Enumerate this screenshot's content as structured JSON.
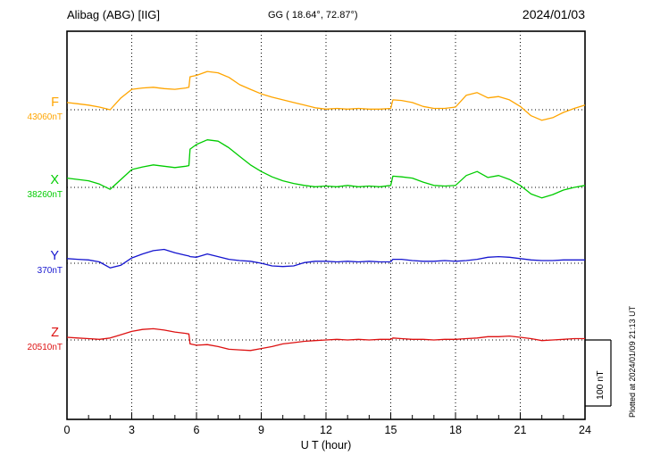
{
  "header": {
    "station": "Alibag (ABG)  [IIG]",
    "coordinates": "GG ( 18.64°,  72.87°)",
    "date": "2024/01/03"
  },
  "axis": {
    "xlabel": "U T (hour)",
    "ticks": [
      0,
      3,
      6,
      9,
      12,
      15,
      18,
      21,
      24
    ]
  },
  "scale_bar": {
    "label": "100 nT",
    "nT": 100
  },
  "footer_note": "Plotted at 2024/01/09 21:13 UT",
  "chart_data": {
    "type": "line",
    "title": "Alibag (ABG) [IIG] magnetogram 2024/01/03",
    "xlabel": "U T (hour)",
    "xlim": [
      0,
      24
    ],
    "grid": "dotted vertical every 3 h, dotted horizontal baselines",
    "legend_position": "left margin labels",
    "scale_nT_per_div": 100,
    "x_hours": [
      0,
      0.5,
      1,
      1.5,
      2,
      2.5,
      3,
      3.5,
      4,
      4.5,
      5,
      5.5,
      5.65,
      5.7,
      6,
      6.5,
      7,
      7.5,
      8,
      8.5,
      9,
      9.5,
      10,
      10.5,
      11,
      11.5,
      12,
      12.5,
      13,
      13.5,
      14,
      14.5,
      15,
      15.1,
      15.5,
      16,
      16.5,
      17,
      17.5,
      18,
      18.5,
      19,
      19.5,
      20,
      20.5,
      21,
      21.5,
      22,
      22.5,
      23,
      23.5,
      24
    ],
    "series": [
      {
        "name": "F",
        "baseline_label": "43060nT",
        "baseline_nT": 43060,
        "color": "#FFA500",
        "deviations_nT": [
          11,
          9,
          7,
          4,
          0,
          18,
          31,
          33,
          34,
          32,
          31,
          33,
          34,
          50,
          52,
          58,
          56,
          49,
          38,
          31,
          24,
          19,
          15,
          11,
          7,
          3,
          1,
          2,
          1,
          2,
          1,
          1,
          2,
          15,
          14,
          11,
          5,
          2,
          2,
          4,
          22,
          26,
          18,
          20,
          15,
          5,
          -9,
          -16,
          -12,
          -4,
          2,
          7
        ]
      },
      {
        "name": "X",
        "baseline_label": "38260nT",
        "baseline_nT": 38260,
        "color": "#00CC00",
        "deviations_nT": [
          14,
          12,
          10,
          5,
          -3,
          12,
          27,
          31,
          34,
          32,
          30,
          32,
          33,
          58,
          65,
          72,
          70,
          60,
          47,
          34,
          24,
          16,
          10,
          6,
          3,
          1,
          2,
          1,
          3,
          1,
          2,
          1,
          3,
          17,
          16,
          14,
          8,
          3,
          2,
          3,
          18,
          24,
          15,
          18,
          12,
          3,
          -10,
          -16,
          -11,
          -4,
          0,
          3
        ]
      },
      {
        "name": "Y",
        "baseline_label": "370nT",
        "baseline_nT": 370,
        "color": "#1515CF",
        "deviations_nT": [
          7,
          6,
          5,
          2,
          -7,
          -3,
          8,
          14,
          19,
          21,
          16,
          12,
          11,
          10,
          9,
          14,
          10,
          6,
          4,
          3,
          0,
          -4,
          -5,
          -4,
          1,
          3,
          3,
          2,
          3,
          2,
          3,
          2,
          2,
          6,
          6,
          4,
          3,
          3,
          4,
          3,
          4,
          6,
          9,
          10,
          9,
          7,
          5,
          4,
          4,
          5,
          5,
          5
        ]
      },
      {
        "name": "Z",
        "baseline_label": "20510nT",
        "baseline_nT": 20510,
        "color": "#DD1111",
        "deviations_nT": [
          4,
          3,
          2,
          1,
          3,
          8,
          13,
          16,
          17,
          15,
          12,
          10,
          9,
          -6,
          -8,
          -7,
          -10,
          -14,
          -15,
          -16,
          -13,
          -10,
          -6,
          -4,
          -2,
          -1,
          0,
          1,
          0,
          1,
          0,
          1,
          1,
          3,
          2,
          1,
          1,
          0,
          1,
          1,
          2,
          3,
          5,
          5,
          6,
          4,
          2,
          -1,
          0,
          1,
          2,
          2
        ]
      }
    ]
  }
}
